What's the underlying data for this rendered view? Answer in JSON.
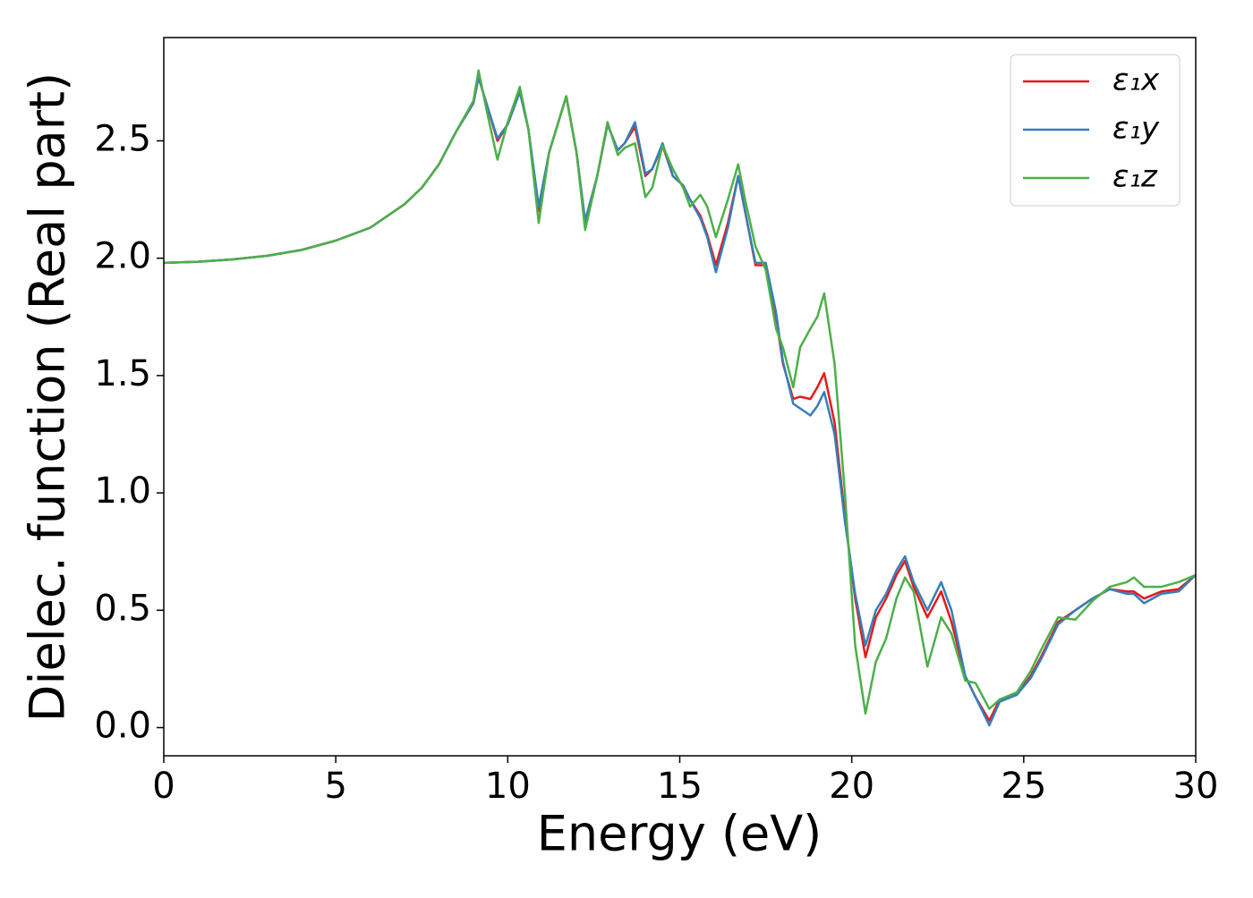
{
  "chart_data": {
    "type": "line",
    "xlabel": "Energy (eV)",
    "ylabel": "Dielec. function (Real part)",
    "x": [
      0,
      1,
      2,
      3,
      4,
      5,
      6,
      7,
      7.5,
      8,
      8.5,
      9,
      9.15,
      9.4,
      9.7,
      10,
      10.35,
      10.6,
      10.9,
      11.2,
      11.7,
      12,
      12.25,
      12.6,
      12.9,
      13.2,
      13.4,
      13.7,
      14,
      14.2,
      14.5,
      14.8,
      15.1,
      15.3,
      15.6,
      15.8,
      16.05,
      16.4,
      16.7,
      16.9,
      17.2,
      17.5,
      17.8,
      18,
      18.3,
      18.5,
      18.8,
      19,
      19.2,
      19.5,
      19.8,
      20.1,
      20.4,
      20.7,
      21,
      21.3,
      21.55,
      21.8,
      22.2,
      22.6,
      22.9,
      23.3,
      23.6,
      24,
      24.3,
      24.8,
      25.2,
      25.5,
      26,
      26.5,
      27,
      27.5,
      28,
      28.2,
      28.5,
      29,
      29.5,
      30
    ],
    "series": [
      {
        "name": "ε₁x",
        "color": "#e41a1c",
        "values": [
          1.98,
          1.985,
          1.995,
          2.01,
          2.035,
          2.075,
          2.13,
          2.23,
          2.3,
          2.4,
          2.54,
          2.66,
          2.77,
          2.65,
          2.5,
          2.57,
          2.71,
          2.55,
          2.2,
          2.45,
          2.69,
          2.45,
          2.15,
          2.35,
          2.57,
          2.46,
          2.49,
          2.56,
          2.35,
          2.38,
          2.48,
          2.35,
          2.31,
          2.25,
          2.18,
          2.1,
          1.97,
          2.15,
          2.35,
          2.2,
          1.97,
          1.97,
          1.75,
          1.55,
          1.4,
          1.41,
          1.4,
          1.45,
          1.51,
          1.3,
          0.9,
          0.55,
          0.3,
          0.47,
          0.55,
          0.65,
          0.71,
          0.6,
          0.47,
          0.58,
          0.45,
          0.22,
          0.13,
          0.03,
          0.12,
          0.14,
          0.22,
          0.3,
          0.45,
          0.5,
          0.55,
          0.59,
          0.58,
          0.58,
          0.55,
          0.58,
          0.59,
          0.65
        ]
      },
      {
        "name": "ε₁y",
        "color": "#377eb8",
        "values": [
          1.98,
          1.985,
          1.995,
          2.01,
          2.035,
          2.075,
          2.13,
          2.23,
          2.3,
          2.4,
          2.54,
          2.66,
          2.77,
          2.65,
          2.51,
          2.57,
          2.71,
          2.55,
          2.22,
          2.45,
          2.69,
          2.45,
          2.16,
          2.35,
          2.57,
          2.46,
          2.49,
          2.58,
          2.36,
          2.38,
          2.49,
          2.35,
          2.31,
          2.25,
          2.17,
          2.09,
          1.94,
          2.13,
          2.35,
          2.2,
          1.98,
          1.98,
          1.77,
          1.56,
          1.38,
          1.36,
          1.33,
          1.37,
          1.43,
          1.25,
          0.88,
          0.57,
          0.35,
          0.5,
          0.57,
          0.67,
          0.73,
          0.62,
          0.5,
          0.62,
          0.5,
          0.22,
          0.13,
          0.01,
          0.11,
          0.14,
          0.21,
          0.29,
          0.44,
          0.5,
          0.55,
          0.59,
          0.57,
          0.57,
          0.53,
          0.57,
          0.58,
          0.65
        ]
      },
      {
        "name": "ε₁z",
        "color": "#4daf4a",
        "values": [
          1.98,
          1.985,
          1.995,
          2.01,
          2.035,
          2.075,
          2.13,
          2.23,
          2.3,
          2.4,
          2.54,
          2.67,
          2.8,
          2.62,
          2.42,
          2.58,
          2.73,
          2.55,
          2.15,
          2.45,
          2.69,
          2.45,
          2.12,
          2.35,
          2.58,
          2.44,
          2.47,
          2.49,
          2.26,
          2.3,
          2.48,
          2.38,
          2.3,
          2.22,
          2.27,
          2.22,
          2.09,
          2.25,
          2.4,
          2.25,
          2.05,
          1.95,
          1.7,
          1.62,
          1.45,
          1.62,
          1.7,
          1.75,
          1.85,
          1.55,
          1.0,
          0.35,
          0.06,
          0.28,
          0.38,
          0.55,
          0.64,
          0.58,
          0.26,
          0.47,
          0.4,
          0.2,
          0.19,
          0.08,
          0.12,
          0.15,
          0.24,
          0.33,
          0.47,
          0.46,
          0.54,
          0.6,
          0.62,
          0.64,
          0.6,
          0.6,
          0.62,
          0.65
        ]
      }
    ],
    "xlim": [
      0,
      30
    ],
    "ylim": [
      -0.12,
      2.94
    ],
    "xticks": [
      0,
      5,
      10,
      15,
      20,
      25,
      30
    ],
    "yticks": [
      {
        "value": 0,
        "label": "0.0"
      },
      {
        "value": 0.5,
        "label": "0.5"
      },
      {
        "value": 1,
        "label": "1.0"
      },
      {
        "value": 1.5,
        "label": "1.5"
      },
      {
        "value": 2,
        "label": "2.0"
      },
      {
        "value": 2.5,
        "label": "2.5"
      }
    ],
    "legend": "upper right",
    "grid": false
  }
}
